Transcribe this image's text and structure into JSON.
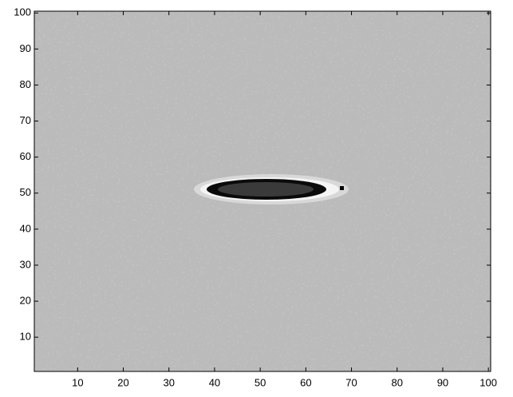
{
  "chart_data": {
    "type": "image",
    "xlim": [
      0.5,
      100.5
    ],
    "xticks": [
      10,
      20,
      30,
      40,
      50,
      60,
      70,
      80,
      90,
      100
    ],
    "ylim": [
      0.5,
      100.5
    ],
    "yticks": [
      10,
      20,
      30,
      40,
      50,
      60,
      70,
      80,
      90,
      100
    ]
  }
}
